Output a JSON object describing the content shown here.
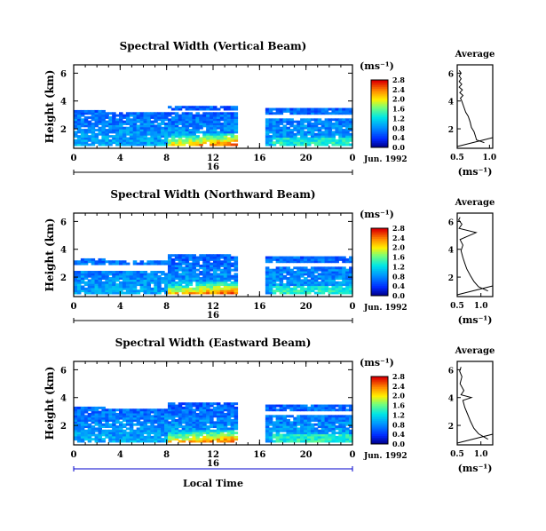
{
  "local_time_label": "Local Time",
  "chart_data": [
    {
      "type": "heatmap",
      "title": "Spectral Width (Vertical Beam)",
      "ylabel": "Height (km)",
      "y_ticks": [
        "2",
        "4",
        "6"
      ],
      "ylim": [
        0.6,
        6.6
      ],
      "x_ticks": [
        "0",
        "4",
        "8",
        "12",
        "16",
        "20",
        "0"
      ],
      "xlim": [
        0,
        24
      ],
      "date_tick": "16",
      "date_label": "Jun. 1992",
      "data_gap_hours": [
        14.1,
        16.3
      ],
      "colorbar": {
        "unit": "(ms⁻¹)",
        "labels": [
          "0.0",
          "0.4",
          "0.8",
          "1.2",
          "1.6",
          "2.0",
          "2.4",
          "2.8"
        ]
      },
      "average": {
        "title": "Average",
        "xlabel": "(ms⁻¹)",
        "x_ticks": [
          "0.5",
          "1.0"
        ],
        "xlim": [
          0.5,
          1.05
        ],
        "profile": [
          [
            0.92,
            1.0
          ],
          [
            0.8,
            1.2
          ],
          [
            0.78,
            1.5
          ],
          [
            0.76,
            1.8
          ],
          [
            0.72,
            2.1
          ],
          [
            0.7,
            2.5
          ],
          [
            0.67,
            2.9
          ],
          [
            0.63,
            3.2
          ],
          [
            0.6,
            3.6
          ],
          [
            0.57,
            4.0
          ],
          [
            0.55,
            4.2
          ],
          [
            0.59,
            4.4
          ],
          [
            0.54,
            4.6
          ],
          [
            0.58,
            4.8
          ],
          [
            0.53,
            5.0
          ],
          [
            0.57,
            5.2
          ],
          [
            0.53,
            5.4
          ],
          [
            0.56,
            5.6
          ],
          [
            0.53,
            5.8
          ],
          [
            0.56,
            6.0
          ],
          [
            0.53,
            6.2
          ]
        ]
      }
    },
    {
      "type": "heatmap",
      "title": "Spectral Width (Northward Beam)",
      "ylabel": "Height (km)",
      "y_ticks": [
        "2",
        "4",
        "6"
      ],
      "ylim": [
        0.6,
        6.6
      ],
      "x_ticks": [
        "0",
        "4",
        "8",
        "12",
        "16",
        "20",
        "0"
      ],
      "xlim": [
        0,
        24
      ],
      "date_tick": "16",
      "date_label": "Jun. 1992",
      "data_gap_hours": [
        14.1,
        16.3
      ],
      "colorbar": {
        "unit": "(ms⁻¹)",
        "labels": [
          "0.0",
          "0.4",
          "0.8",
          "1.2",
          "1.6",
          "2.0",
          "2.4",
          "2.8"
        ]
      },
      "average": {
        "title": "Average",
        "xlabel": "(ms⁻¹)",
        "x_ticks": [
          "0.5",
          "1.0"
        ],
        "xlim": [
          0.5,
          1.25
        ],
        "profile": [
          [
            1.15,
            1.0
          ],
          [
            0.95,
            1.3
          ],
          [
            0.85,
            1.7
          ],
          [
            0.78,
            2.1
          ],
          [
            0.7,
            2.6
          ],
          [
            0.66,
            3.0
          ],
          [
            0.62,
            3.4
          ],
          [
            0.58,
            3.9
          ],
          [
            0.62,
            4.3
          ],
          [
            0.56,
            4.7
          ],
          [
            0.9,
            5.2
          ],
          [
            0.54,
            5.5
          ],
          [
            0.6,
            5.8
          ],
          [
            0.53,
            6.1
          ],
          [
            0.56,
            6.3
          ]
        ]
      }
    },
    {
      "type": "heatmap",
      "title": "Spectral Width (Eastward Beam)",
      "ylabel": "Height (km)",
      "y_ticks": [
        "2",
        "4",
        "6"
      ],
      "ylim": [
        0.6,
        6.6
      ],
      "x_ticks": [
        "0",
        "4",
        "8",
        "12",
        "16",
        "20",
        "0"
      ],
      "xlim": [
        0,
        24
      ],
      "date_tick": "16",
      "date_label": "Jun. 1992",
      "data_gap_hours": [
        14.1,
        16.3
      ],
      "colorbar": {
        "unit": "(ms⁻¹)",
        "labels": [
          "0.0",
          "0.4",
          "0.8",
          "1.2",
          "1.6",
          "2.0",
          "2.4",
          "2.8"
        ]
      },
      "average": {
        "title": "Average",
        "xlabel": "(ms⁻¹)",
        "x_ticks": [
          "0.5",
          "1.0"
        ],
        "xlim": [
          0.5,
          1.25
        ],
        "profile": [
          [
            1.15,
            1.0
          ],
          [
            0.95,
            1.4
          ],
          [
            0.85,
            1.8
          ],
          [
            0.78,
            2.3
          ],
          [
            0.72,
            2.8
          ],
          [
            0.66,
            3.3
          ],
          [
            0.62,
            3.8
          ],
          [
            0.8,
            4.0
          ],
          [
            0.58,
            4.2
          ],
          [
            0.64,
            4.5
          ],
          [
            0.56,
            5.0
          ],
          [
            0.6,
            5.5
          ],
          [
            0.55,
            5.9
          ],
          [
            0.58,
            6.2
          ]
        ]
      }
    }
  ]
}
